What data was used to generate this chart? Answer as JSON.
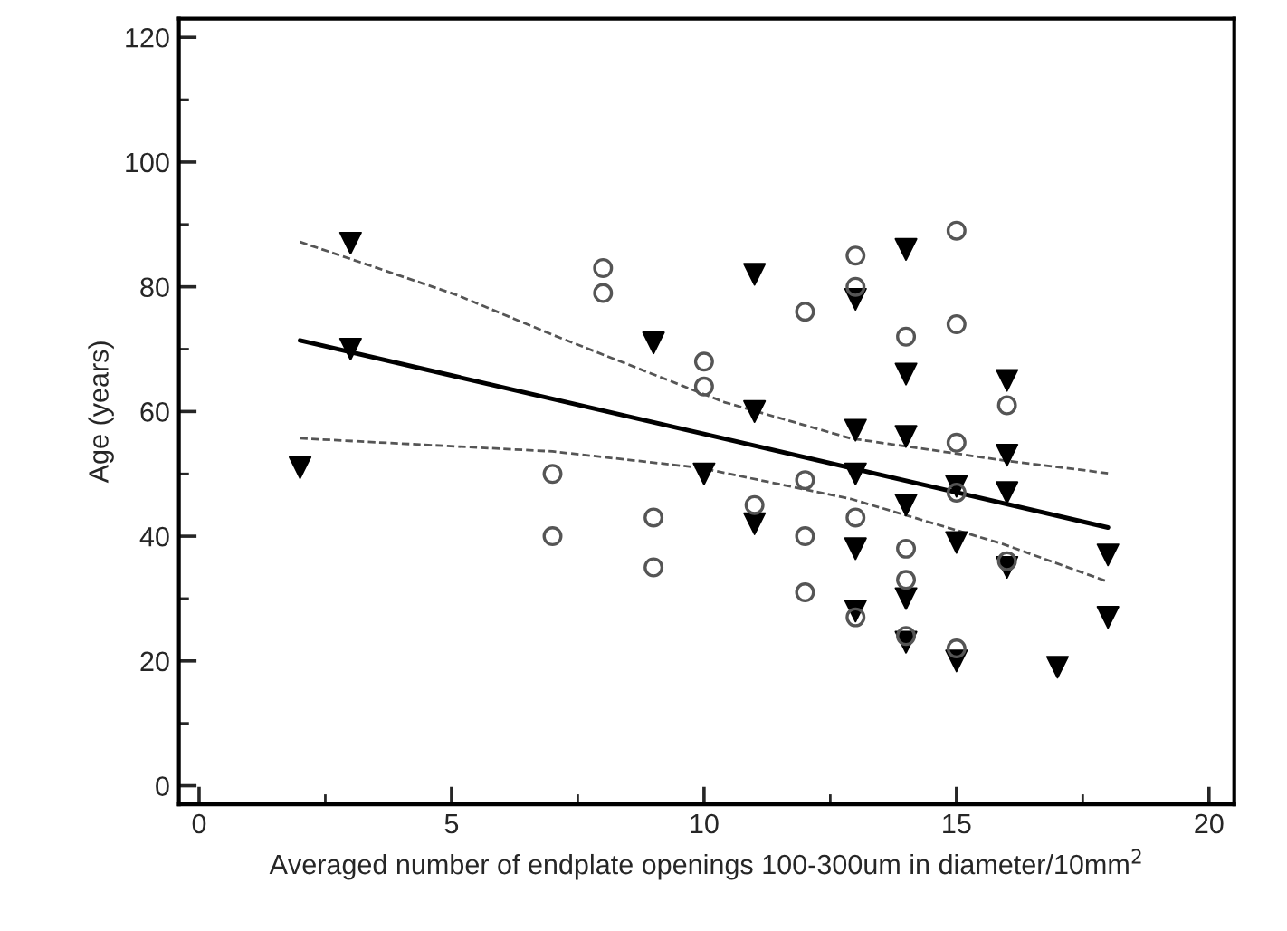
{
  "chart_data": {
    "type": "scatter",
    "xlabel": "Averaged number of endplate openings 100-300um in diameter/10mm$^{2}$",
    "ylabel": "Age (years)",
    "xlim": [
      -0.4,
      20.5
    ],
    "ylim": [
      -3,
      123
    ],
    "xticks": [
      0,
      {
        "value": 2.5,
        "label": null
      },
      5,
      {
        "value": 7.5,
        "label": null
      },
      10,
      {
        "value": 12.5,
        "label": null
      },
      15,
      {
        "value": 17.5,
        "label": null
      },
      20
    ],
    "yticks": [
      0,
      {
        "value": 10,
        "label": null
      },
      20,
      {
        "value": 30,
        "label": null
      },
      40,
      {
        "value": 50,
        "label": null
      },
      60,
      {
        "value": 70,
        "label": null
      },
      80,
      {
        "value": 90,
        "label": null
      },
      100,
      {
        "value": 110,
        "label": null
      },
      120
    ],
    "grid": false,
    "legend": false,
    "series": [
      {
        "marker": "triangle",
        "color": "#000000",
        "x": [
          2,
          3,
          3,
          9,
          10,
          11,
          11,
          11,
          13,
          13,
          13,
          13,
          13,
          14,
          14,
          14,
          14,
          14,
          14,
          15,
          15,
          15,
          16,
          16,
          16,
          16,
          17,
          18,
          18
        ],
        "values": [
          51,
          87,
          70,
          71,
          50,
          82,
          60,
          42,
          78,
          57,
          50,
          38,
          28,
          86,
          66,
          56,
          45,
          30,
          23,
          48,
          39,
          20,
          65,
          53,
          47,
          35,
          19,
          37,
          27
        ]
      },
      {
        "marker": "circle",
        "color": "#555555",
        "x": [
          7,
          7,
          8,
          8,
          9,
          9,
          10,
          10,
          11,
          12,
          12,
          12,
          12,
          13,
          13,
          13,
          13,
          14,
          14,
          14,
          14,
          15,
          15,
          15,
          15,
          15,
          16,
          16
        ],
        "values": [
          50,
          40,
          83,
          79,
          43,
          35,
          68,
          64,
          45,
          76,
          49,
          40,
          31,
          85,
          80,
          43,
          27,
          72,
          38,
          33,
          24,
          89,
          74,
          55,
          47,
          22,
          61,
          36
        ]
      },
      {
        "type": "line",
        "line_style": "solid",
        "color": "#000000",
        "x": [
          2,
          18
        ],
        "values": [
          71.4,
          41.4
        ]
      },
      {
        "type": "line",
        "line_style": "dashed",
        "color": "#555555",
        "x": [
          2,
          5.1,
          7,
          10.4,
          12.9,
          15.9,
          18
        ],
        "values": [
          87.2,
          78.7,
          72.3,
          61.5,
          55.7,
          52.2,
          50.1
        ]
      },
      {
        "type": "line",
        "line_style": "dashed",
        "color": "#555555",
        "x": [
          2,
          7,
          9.9,
          12.9,
          15.9,
          18
        ],
        "values": [
          55.7,
          53.6,
          51,
          46,
          38.8,
          32.7
        ]
      }
    ]
  }
}
